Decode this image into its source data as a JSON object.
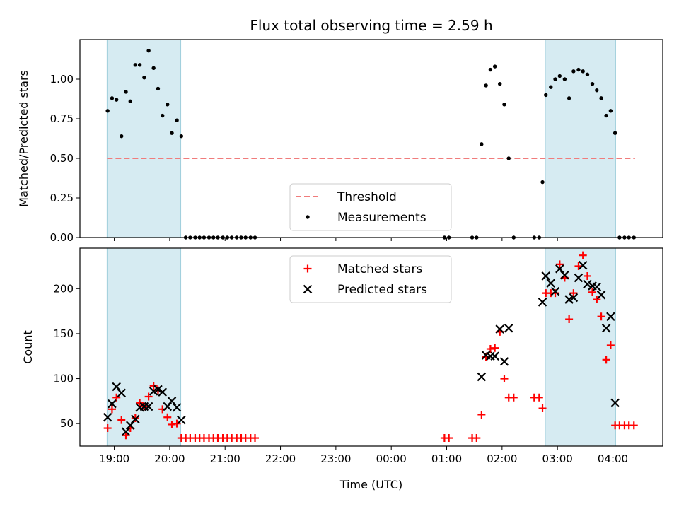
{
  "chart_data": {
    "type": "scatter",
    "title": "Flux total observing time = 2.59 h",
    "xlabel": "Time (UTC)",
    "x_unit": "hours of night, 19 = 19:00, 24 = 00:00, 25 = 01:00",
    "x_ticks": [
      {
        "value": 19,
        "label": "19:00"
      },
      {
        "value": 20,
        "label": "20:00"
      },
      {
        "value": 21,
        "label": "21:00"
      },
      {
        "value": 22,
        "label": "22:00"
      },
      {
        "value": 23,
        "label": "23:00"
      },
      {
        "value": 24,
        "label": "00:00"
      },
      {
        "value": 25,
        "label": "01:00"
      },
      {
        "value": 26,
        "label": "02:00"
      },
      {
        "value": 27,
        "label": "03:00"
      },
      {
        "value": 28,
        "label": "04:00"
      }
    ],
    "xlim": [
      18.38,
      28.9
    ],
    "shaded_intervals": [
      {
        "start": 18.87,
        "end": 20.2
      },
      {
        "start": 26.78,
        "end": 28.05
      }
    ],
    "panels": [
      {
        "ylabel": "Matched/Predicted stars",
        "ylim": [
          0,
          1.25
        ],
        "y_ticks": [
          {
            "value": 0,
            "label": "0.00"
          },
          {
            "value": 0.25,
            "label": "0.25"
          },
          {
            "value": 0.5,
            "label": "0.50"
          },
          {
            "value": 0.75,
            "label": "0.75"
          },
          {
            "value": 1.0,
            "label": "1.00"
          }
        ],
        "threshold": {
          "y": 0.5,
          "x_start": 18.87,
          "x_end": 28.4,
          "color": "#f07c7c"
        },
        "legend": [
          {
            "label": "Threshold",
            "marker": "dashed-line",
            "color": "#f07c7c"
          },
          {
            "label": "Measurements",
            "marker": "dot",
            "color": "#000000"
          }
        ],
        "legend_position": "lower-center",
        "series": [
          {
            "name": "Measurements",
            "color": "#000000",
            "points": [
              [
                18.88,
                0.8
              ],
              [
                18.96,
                0.88
              ],
              [
                19.04,
                0.87
              ],
              [
                19.13,
                0.64
              ],
              [
                19.21,
                0.92
              ],
              [
                19.29,
                0.86
              ],
              [
                19.38,
                1.09
              ],
              [
                19.46,
                1.09
              ],
              [
                19.54,
                1.01
              ],
              [
                19.62,
                1.18
              ],
              [
                19.71,
                1.07
              ],
              [
                19.79,
                0.94
              ],
              [
                19.87,
                0.77
              ],
              [
                19.96,
                0.84
              ],
              [
                20.04,
                0.66
              ],
              [
                20.13,
                0.74
              ],
              [
                20.21,
                0.64
              ],
              [
                20.29,
                0
              ],
              [
                20.37,
                0
              ],
              [
                20.46,
                0
              ],
              [
                20.54,
                0
              ],
              [
                20.62,
                0
              ],
              [
                20.71,
                0
              ],
              [
                20.79,
                0
              ],
              [
                20.87,
                0
              ],
              [
                20.96,
                0
              ],
              [
                21.04,
                0
              ],
              [
                21.12,
                0
              ],
              [
                21.21,
                0
              ],
              [
                21.29,
                0
              ],
              [
                21.37,
                0
              ],
              [
                21.46,
                0
              ],
              [
                21.54,
                0
              ],
              [
                24.96,
                0
              ],
              [
                25.04,
                0
              ],
              [
                25.46,
                0
              ],
              [
                25.54,
                0
              ],
              [
                25.63,
                0.59
              ],
              [
                25.71,
                0.96
              ],
              [
                25.79,
                1.06
              ],
              [
                25.87,
                1.08
              ],
              [
                25.96,
                0.97
              ],
              [
                26.04,
                0.84
              ],
              [
                26.12,
                0.5
              ],
              [
                26.21,
                0
              ],
              [
                26.58,
                0
              ],
              [
                26.67,
                0
              ],
              [
                26.73,
                0.35
              ],
              [
                26.79,
                0.9
              ],
              [
                26.88,
                0.95
              ],
              [
                26.96,
                1.0
              ],
              [
                27.04,
                1.02
              ],
              [
                27.13,
                1.0
              ],
              [
                27.21,
                0.88
              ],
              [
                27.29,
                1.05
              ],
              [
                27.38,
                1.06
              ],
              [
                27.46,
                1.05
              ],
              [
                27.54,
                1.03
              ],
              [
                27.63,
                0.97
              ],
              [
                27.71,
                0.93
              ],
              [
                27.79,
                0.88
              ],
              [
                27.88,
                0.77
              ],
              [
                27.96,
                0.8
              ],
              [
                28.04,
                0.66
              ],
              [
                28.12,
                0
              ],
              [
                28.21,
                0
              ],
              [
                28.29,
                0
              ],
              [
                28.38,
                0
              ]
            ]
          }
        ]
      },
      {
        "ylabel": "Count",
        "ylim": [
          25,
          245
        ],
        "y_ticks": [
          {
            "value": 50,
            "label": "50"
          },
          {
            "value": 100,
            "label": "100"
          },
          {
            "value": 150,
            "label": "150"
          },
          {
            "value": 200,
            "label": "200"
          }
        ],
        "legend": [
          {
            "label": "Matched stars",
            "marker": "plus",
            "color": "#ff0000"
          },
          {
            "label": "Predicted stars",
            "marker": "x",
            "color": "#000000"
          }
        ],
        "legend_position": "upper-center",
        "series": [
          {
            "name": "Matched stars",
            "color": "#ff0000",
            "marker": "plus",
            "points": [
              [
                18.88,
                45
              ],
              [
                18.96,
                66
              ],
              [
                19.04,
                79
              ],
              [
                19.13,
                54
              ],
              [
                19.21,
                37
              ],
              [
                19.29,
                45
              ],
              [
                19.38,
                56
              ],
              [
                19.46,
                73
              ],
              [
                19.54,
                69
              ],
              [
                19.62,
                80
              ],
              [
                19.71,
                92
              ],
              [
                19.79,
                87
              ],
              [
                19.87,
                66
              ],
              [
                19.96,
                57
              ],
              [
                20.04,
                49
              ],
              [
                20.13,
                50
              ],
              [
                20.21,
                34
              ],
              [
                20.29,
                34
              ],
              [
                20.37,
                34
              ],
              [
                20.46,
                34
              ],
              [
                20.54,
                34
              ],
              [
                20.62,
                34
              ],
              [
                20.71,
                34
              ],
              [
                20.79,
                34
              ],
              [
                20.87,
                34
              ],
              [
                20.96,
                34
              ],
              [
                21.04,
                34
              ],
              [
                21.12,
                34
              ],
              [
                21.21,
                34
              ],
              [
                21.29,
                34
              ],
              [
                21.37,
                34
              ],
              [
                21.46,
                34
              ],
              [
                21.54,
                34
              ],
              [
                24.96,
                34
              ],
              [
                25.04,
                34
              ],
              [
                25.46,
                34
              ],
              [
                25.54,
                34
              ],
              [
                25.63,
                60
              ],
              [
                25.71,
                124
              ],
              [
                25.79,
                133
              ],
              [
                25.87,
                134
              ],
              [
                25.96,
                152
              ],
              [
                26.04,
                100
              ],
              [
                26.12,
                79
              ],
              [
                26.21,
                79
              ],
              [
                26.58,
                79
              ],
              [
                26.67,
                79
              ],
              [
                26.73,
                67
              ],
              [
                26.79,
                195
              ],
              [
                26.88,
                195
              ],
              [
                26.96,
                195
              ],
              [
                27.04,
                227
              ],
              [
                27.13,
                212
              ],
              [
                27.21,
                166
              ],
              [
                27.29,
                195
              ],
              [
                27.38,
                225
              ],
              [
                27.46,
                237
              ],
              [
                27.54,
                214
              ],
              [
                27.63,
                196
              ],
              [
                27.71,
                188
              ],
              [
                27.79,
                169
              ],
              [
                27.88,
                121
              ],
              [
                27.96,
                137
              ],
              [
                28.04,
                48
              ],
              [
                28.12,
                48
              ],
              [
                28.21,
                48
              ],
              [
                28.29,
                48
              ],
              [
                28.38,
                48
              ]
            ]
          },
          {
            "name": "Predicted stars",
            "color": "#000000",
            "marker": "x",
            "points": [
              [
                18.88,
                57
              ],
              [
                18.96,
                72
              ],
              [
                19.04,
                91
              ],
              [
                19.13,
                84
              ],
              [
                19.21,
                41
              ],
              [
                19.29,
                48
              ],
              [
                19.38,
                55
              ],
              [
                19.46,
                68
              ],
              [
                19.54,
                69
              ],
              [
                19.62,
                69
              ],
              [
                19.71,
                86
              ],
              [
                19.79,
                88
              ],
              [
                19.87,
                85
              ],
              [
                19.96,
                69
              ],
              [
                20.04,
                75
              ],
              [
                20.13,
                68
              ],
              [
                20.21,
                54
              ],
              [
                25.63,
                102
              ],
              [
                25.71,
                126
              ],
              [
                25.79,
                125
              ],
              [
                25.87,
                125
              ],
              [
                25.96,
                155
              ],
              [
                26.04,
                119
              ],
              [
                26.12,
                156
              ],
              [
                26.73,
                185
              ],
              [
                26.79,
                214
              ],
              [
                26.88,
                206
              ],
              [
                26.96,
                197
              ],
              [
                27.04,
                222
              ],
              [
                27.13,
                215
              ],
              [
                27.21,
                188
              ],
              [
                27.29,
                190
              ],
              [
                27.38,
                212
              ],
              [
                27.46,
                226
              ],
              [
                27.54,
                205
              ],
              [
                27.63,
                203
              ],
              [
                27.71,
                202
              ],
              [
                27.79,
                193
              ],
              [
                27.88,
                156
              ],
              [
                27.96,
                169
              ],
              [
                28.04,
                73
              ]
            ]
          }
        ]
      }
    ]
  }
}
